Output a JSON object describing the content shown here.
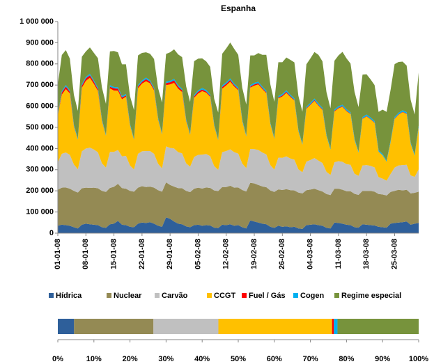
{
  "chart_data": [
    {
      "type": "area",
      "title": "Espanha",
      "categories": [
        "01-01-08",
        null,
        null,
        null,
        null,
        null,
        null,
        "08-01-08",
        null,
        null,
        null,
        null,
        null,
        null,
        "15-01-08",
        null,
        null,
        null,
        null,
        null,
        null,
        "22-01-08",
        null,
        null,
        null,
        null,
        null,
        null,
        "29-01-08",
        null,
        null,
        null,
        null,
        null,
        null,
        "05-02-08",
        null,
        null,
        null,
        null,
        null,
        null,
        "12-02-08",
        null,
        null,
        null,
        null,
        null,
        null,
        "19-02-08",
        null,
        null,
        null,
        null,
        null,
        null,
        "26-02-08",
        null,
        null,
        null,
        null,
        null,
        null,
        "04-03-08",
        null,
        null,
        null,
        null,
        null,
        null,
        "11-03-08",
        null,
        null,
        null,
        null,
        null,
        null,
        "18-03-08",
        null,
        null,
        null,
        null,
        null,
        null,
        "25-03-08",
        null,
        null,
        null,
        null,
        null,
        null
      ],
      "ylim": [
        0,
        1000000
      ],
      "yticks": [
        0,
        {
          "value": 100000,
          "label": "100 000"
        },
        {
          "value": 200000,
          "label": "200 000"
        },
        {
          "value": 300000,
          "label": "300 000"
        },
        {
          "value": 400000,
          "label": "400 000"
        },
        {
          "value": 500000,
          "label": "500 000"
        },
        {
          "value": 600000,
          "label": "600 000"
        },
        {
          "value": 700000,
          "label": "700 000"
        },
        {
          "value": 800000,
          "label": "800 000"
        },
        {
          "value": 900000,
          "label": "900 000"
        },
        {
          "value": 1000000,
          "label": "1 000 000"
        }
      ],
      "grid": false,
      "series": [
        {
          "name": "Hídrica",
          "color": "#2e5f9a",
          "values": [
            35000,
            40000,
            38000,
            35000,
            28000,
            22000,
            40000,
            45000,
            42000,
            40000,
            38000,
            28000,
            25000,
            42000,
            45000,
            58000,
            40000,
            38000,
            30000,
            28000,
            45000,
            50000,
            48000,
            52000,
            45000,
            35000,
            30000,
            75000,
            68000,
            55000,
            45000,
            42000,
            32000,
            28000,
            38000,
            40000,
            35000,
            38000,
            36000,
            26000,
            24000,
            40000,
            38000,
            42000,
            35000,
            38000,
            28000,
            22000,
            60000,
            55000,
            50000,
            45000,
            42000,
            30000,
            25000,
            35000,
            30000,
            32000,
            28000,
            30000,
            22000,
            20000,
            38000,
            40000,
            42000,
            38000,
            35000,
            25000,
            22000,
            50000,
            48000,
            45000,
            40000,
            38000,
            28000,
            26000,
            42000,
            40000,
            38000,
            36000,
            30000,
            28000,
            26000,
            45000,
            48000,
            50000,
            52000,
            55000,
            40000,
            45000,
            48000
          ]
        },
        {
          "name": "Nuclear",
          "color": "#948a54",
          "values": [
            170000,
            175000,
            178000,
            175000,
            172000,
            170000,
            172000,
            170000,
            172000,
            175000,
            174000,
            172000,
            170000,
            172000,
            174000,
            175000,
            173000,
            172000,
            170000,
            168000,
            170000,
            172000,
            170000,
            168000,
            170000,
            168000,
            166000,
            165000,
            160000,
            165000,
            168000,
            170000,
            168000,
            166000,
            172000,
            175000,
            176000,
            178000,
            178000,
            176000,
            175000,
            178000,
            180000,
            182000,
            180000,
            178000,
            176000,
            175000,
            178000,
            180000,
            178000,
            176000,
            175000,
            172000,
            170000,
            172000,
            174000,
            176000,
            175000,
            172000,
            170000,
            168000,
            165000,
            166000,
            168000,
            165000,
            162000,
            160000,
            158000,
            160000,
            162000,
            160000,
            158000,
            160000,
            158000,
            155000,
            158000,
            160000,
            162000,
            160000,
            155000,
            155000,
            152000,
            150000,
            152000,
            155000,
            150000,
            150000,
            148000,
            146000,
            148000
          ]
        },
        {
          "name": "Carvão",
          "color": "#c0c0c0",
          "values": [
            130000,
            160000,
            165000,
            160000,
            125000,
            110000,
            175000,
            185000,
            190000,
            180000,
            170000,
            130000,
            115000,
            170000,
            165000,
            160000,
            150000,
            155000,
            120000,
            105000,
            160000,
            165000,
            170000,
            168000,
            160000,
            125000,
            110000,
            170000,
            175000,
            180000,
            170000,
            165000,
            130000,
            120000,
            150000,
            155000,
            160000,
            158000,
            150000,
            115000,
            100000,
            165000,
            170000,
            172000,
            168000,
            160000,
            125000,
            110000,
            160000,
            162000,
            165000,
            160000,
            155000,
            120000,
            105000,
            150000,
            152000,
            155000,
            150000,
            145000,
            110000,
            100000,
            135000,
            140000,
            145000,
            140000,
            135000,
            105000,
            95000,
            125000,
            130000,
            132000,
            128000,
            125000,
            95000,
            90000,
            120000,
            122000,
            118000,
            115000,
            80000,
            75000,
            70000,
            85000,
            110000,
            115000,
            120000,
            118000,
            85000,
            75000,
            105000
          ]
        },
        {
          "name": "CCGT",
          "color": "#ffc000",
          "values": [
            220000,
            280000,
            300000,
            290000,
            180000,
            140000,
            300000,
            320000,
            330000,
            310000,
            290000,
            200000,
            150000,
            300000,
            290000,
            280000,
            270000,
            280000,
            190000,
            140000,
            310000,
            320000,
            330000,
            320000,
            300000,
            210000,
            160000,
            290000,
            300000,
            310000,
            300000,
            290000,
            200000,
            150000,
            280000,
            290000,
            300000,
            290000,
            280000,
            190000,
            140000,
            300000,
            310000,
            320000,
            310000,
            300000,
            200000,
            150000,
            290000,
            300000,
            310000,
            300000,
            290000,
            195000,
            145000,
            280000,
            290000,
            300000,
            290000,
            280000,
            180000,
            130000,
            250000,
            260000,
            270000,
            260000,
            250000,
            170000,
            120000,
            240000,
            250000,
            260000,
            250000,
            240000,
            160000,
            110000,
            220000,
            230000,
            220000,
            210000,
            120000,
            110000,
            90000,
            150000,
            230000,
            240000,
            250000,
            240000,
            150000,
            100000,
            200000
          ]
        },
        {
          "name": "Fuel / Gás",
          "color": "#ff0000",
          "values": [
            2000,
            10000,
            12000,
            8000,
            3000,
            1000,
            10000,
            12000,
            12000,
            10000,
            8000,
            3000,
            1000,
            8000,
            10000,
            10000,
            8000,
            6000,
            2000,
            1000,
            8000,
            8000,
            10000,
            8000,
            6000,
            2000,
            1000,
            10000,
            10000,
            12000,
            10000,
            8000,
            3000,
            1000,
            6000,
            8000,
            8000,
            6000,
            5000,
            2000,
            1000,
            8000,
            8000,
            8000,
            6000,
            5000,
            2000,
            1000,
            5000,
            6000,
            6000,
            5000,
            4000,
            1000,
            1000,
            4000,
            5000,
            5000,
            4000,
            3000,
            1000,
            1000,
            3000,
            3000,
            4000,
            3000,
            3000,
            1000,
            0,
            3000,
            3000,
            3000,
            3000,
            2000,
            1000,
            0,
            2000,
            2000,
            2000,
            2000,
            1000,
            0,
            0,
            1000,
            2000,
            2000,
            2000,
            2000,
            1000,
            0,
            1000
          ]
        },
        {
          "name": "Cogen",
          "color": "#00b0f0",
          "values": [
            5000,
            7000,
            7000,
            7000,
            6000,
            5000,
            7000,
            7000,
            7000,
            7000,
            7000,
            6000,
            5000,
            7000,
            7000,
            7000,
            7000,
            7000,
            6000,
            5000,
            7000,
            7000,
            7000,
            7000,
            7000,
            6000,
            5000,
            7000,
            7000,
            7000,
            7000,
            7000,
            6000,
            5000,
            7000,
            7000,
            7000,
            7000,
            7000,
            6000,
            5000,
            7000,
            7000,
            7000,
            7000,
            7000,
            6000,
            5000,
            7000,
            7000,
            7000,
            7000,
            7000,
            6000,
            5000,
            7000,
            7000,
            7000,
            7000,
            7000,
            6000,
            5000,
            7000,
            7000,
            7000,
            7000,
            7000,
            6000,
            5000,
            7000,
            7000,
            7000,
            7000,
            7000,
            6000,
            5000,
            7000,
            7000,
            7000,
            7000,
            7000,
            6000,
            5000,
            7000,
            7000,
            7000,
            7000,
            7000,
            6000,
            5000,
            7000
          ]
        },
        {
          "name": "Regime especial",
          "color": "#77933c",
          "values": [
            140000,
            170000,
            165000,
            150000,
            140000,
            130000,
            130000,
            120000,
            125000,
            130000,
            140000,
            150000,
            145000,
            160000,
            170000,
            165000,
            150000,
            140000,
            130000,
            135000,
            140000,
            130000,
            120000,
            125000,
            135000,
            140000,
            145000,
            130000,
            135000,
            140000,
            145000,
            150000,
            155000,
            150000,
            160000,
            150000,
            140000,
            135000,
            130000,
            120000,
            125000,
            150000,
            160000,
            170000,
            165000,
            155000,
            150000,
            145000,
            140000,
            130000,
            135000,
            150000,
            170000,
            180000,
            170000,
            160000,
            150000,
            155000,
            165000,
            170000,
            160000,
            150000,
            200000,
            210000,
            220000,
            230000,
            220000,
            200000,
            190000,
            230000,
            240000,
            250000,
            240000,
            230000,
            220000,
            210000,
            200000,
            190000,
            180000,
            170000,
            180000,
            210000,
            230000,
            240000,
            250000,
            240000,
            230000,
            220000,
            200000,
            190000,
            250000
          ]
        }
      ]
    },
    {
      "type": "hbar-stacked",
      "xlim": [
        0,
        100
      ],
      "xticks": [
        {
          "value": 0,
          "label": "0%"
        },
        {
          "value": 10,
          "label": "10%"
        },
        {
          "value": 20,
          "label": "20%"
        },
        {
          "value": 30,
          "label": "30%"
        },
        {
          "value": 40,
          "label": "40%"
        },
        {
          "value": 50,
          "label": "50%"
        },
        {
          "value": 60,
          "label": "60%"
        },
        {
          "value": 70,
          "label": "70%"
        },
        {
          "value": 80,
          "label": "80%"
        },
        {
          "value": 90,
          "label": "90%"
        },
        {
          "value": 100,
          "label": "100%"
        }
      ],
      "series": [
        {
          "color": "#2e5f9a",
          "values": [
            4.5
          ]
        },
        {
          "color": "#948a54",
          "values": [
            22
          ]
        },
        {
          "color": "#c0c0c0",
          "values": [
            18
          ]
        },
        {
          "color": "#ffc000",
          "values": [
            31.5
          ]
        },
        {
          "color": "#ff0000",
          "values": [
            0.5
          ]
        },
        {
          "color": "#00b0f0",
          "values": [
            1
          ]
        },
        {
          "color": "#77933c",
          "values": [
            22.5
          ]
        }
      ]
    }
  ]
}
